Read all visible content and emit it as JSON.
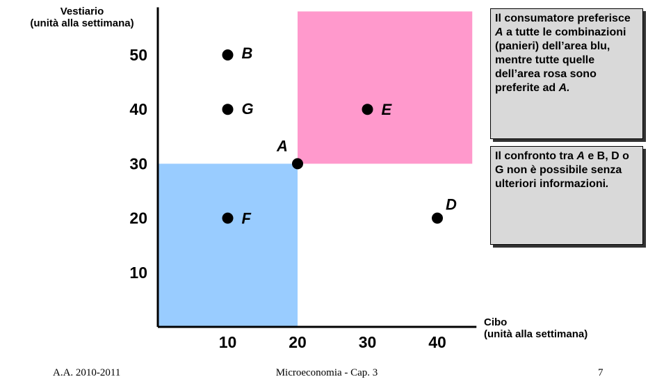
{
  "chart_data": {
    "type": "scatter",
    "ylabel_lines": [
      "Vestiario",
      "(unità alla settimana)"
    ],
    "xlabel_lines": [
      "Cibo",
      "(unità alla settimana)"
    ],
    "x_ticks": [
      10,
      20,
      30,
      40
    ],
    "y_ticks": [
      10,
      20,
      30,
      40,
      50
    ],
    "xlim": [
      0,
      45
    ],
    "ylim": [
      0,
      58
    ],
    "points": [
      {
        "label": "A",
        "x": 20,
        "y": 30
      },
      {
        "label": "B",
        "x": 10,
        "y": 50
      },
      {
        "label": "D",
        "x": 40,
        "y": 20
      },
      {
        "label": "E",
        "x": 30,
        "y": 40
      },
      {
        "label": "F",
        "x": 10,
        "y": 20
      },
      {
        "label": "G",
        "x": 10,
        "y": 40
      }
    ],
    "regions": [
      {
        "name": "area blu",
        "color": "#99ccff",
        "x": [
          0,
          20
        ],
        "y": [
          0,
          30
        ]
      },
      {
        "name": "area rosa",
        "color": "#ff99cc",
        "x": [
          20,
          45
        ],
        "y": [
          30,
          58
        ]
      }
    ]
  },
  "notes": [
    {
      "parts": [
        {
          "text": "Il consumatore preferisce ",
          "italic": false
        },
        {
          "text": "A",
          "italic": true
        },
        {
          "text": " a tutte le combinazioni (panieri) dell’area blu, mentre tutte quelle dell’area rosa sono preferite ad ",
          "italic": false
        },
        {
          "text": "A.",
          "italic": true
        }
      ]
    },
    {
      "parts": [
        {
          "text": "Il confronto tra ",
          "italic": false
        },
        {
          "text": "A",
          "italic": true
        },
        {
          "text": " e B, D o G non è possibile senza ulteriori informazioni",
          "italic": false
        },
        {
          "text": ".",
          "italic": true
        }
      ]
    }
  ],
  "footer": {
    "left": "A.A. 2010-2011",
    "center": "Microeconomia - Cap. 3",
    "right": "7"
  }
}
